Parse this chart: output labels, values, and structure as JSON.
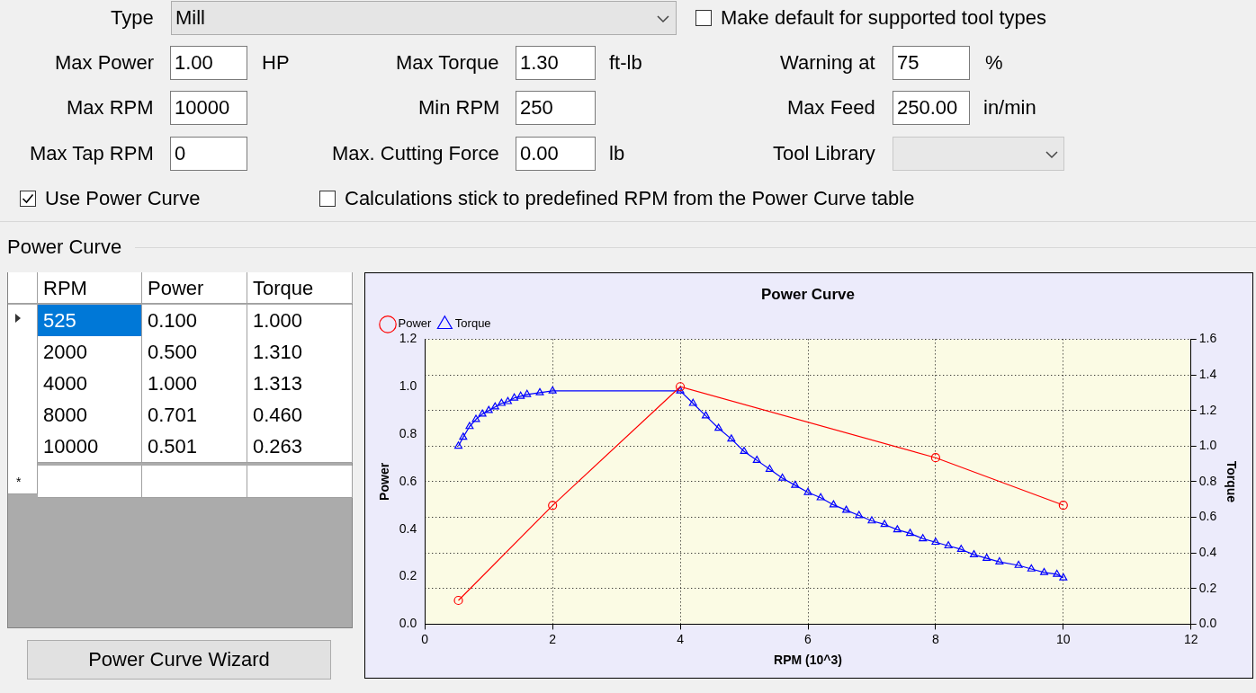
{
  "chart_data": {
    "type": "line",
    "title": "Power Curve",
    "xlabel": "RPM (10^3)",
    "ylabel": "Power",
    "y2label": "Torque",
    "xlim": [
      0,
      12
    ],
    "xticks": [
      0,
      2,
      4,
      6,
      8,
      10,
      12
    ],
    "ylim": [
      0,
      1.2
    ],
    "yticks": [
      {
        "value": 0,
        "label": "0.0"
      },
      0.2,
      0.4,
      0.6,
      0.8,
      {
        "value": 1,
        "label": "1.0"
      },
      1.2
    ],
    "y2lim": [
      0,
      1.6
    ],
    "y2ticks": [
      {
        "value": 0,
        "label": "0.0"
      },
      0.2,
      0.4,
      0.6,
      0.8,
      {
        "value": 1,
        "label": "1.0"
      },
      1.2,
      1.4,
      1.6
    ],
    "grid": true,
    "legend": "top left",
    "line_style": "solid",
    "series": [
      {
        "name": "Power",
        "color": "#ff0000",
        "marker": "circle",
        "x": [
          0.525,
          2,
          4,
          8,
          10
        ],
        "values": [
          0.1,
          0.5,
          1.0,
          0.701,
          0.501
        ]
      },
      {
        "name": "Torque",
        "color": "#0000ff",
        "marker": "triangle",
        "axis": "y2",
        "x": [
          0.525,
          0.6,
          0.7,
          0.8,
          0.9,
          1.0,
          1.1,
          1.2,
          1.3,
          1.4,
          1.5,
          1.6,
          1.8,
          2,
          4,
          4.2,
          4.4,
          4.6,
          4.8,
          5,
          5.2,
          5.4,
          5.6,
          5.8,
          6,
          6.2,
          6.4,
          6.6,
          6.8,
          7,
          7.2,
          7.4,
          7.6,
          7.8,
          8,
          8.2,
          8.4,
          8.6,
          8.8,
          9,
          9.3,
          9.5,
          9.7,
          9.9,
          10
        ],
        "values": [
          1.0,
          1.05,
          1.11,
          1.15,
          1.18,
          1.2,
          1.22,
          1.24,
          1.25,
          1.27,
          1.28,
          1.29,
          1.3,
          1.31,
          1.31,
          1.24,
          1.17,
          1.1,
          1.04,
          0.97,
          0.92,
          0.87,
          0.82,
          0.78,
          0.74,
          0.71,
          0.67,
          0.64,
          0.61,
          0.58,
          0.56,
          0.53,
          0.51,
          0.48,
          0.46,
          0.44,
          0.42,
          0.39,
          0.37,
          0.35,
          0.33,
          0.31,
          0.29,
          0.28,
          0.26
        ]
      }
    ],
    "annotations": [
      "Type",
      "Mill",
      "Make default for supported tool types",
      "Max Power",
      "1.00",
      "HP",
      "Max Torque",
      "1.30",
      "ft-lb",
      "Warning at",
      "75",
      "%",
      "Max RPM",
      "10000",
      "Min RPM",
      "250",
      "Max Feed",
      "250.00",
      "in/min",
      "Max Tap RPM",
      "0",
      "Max. Cutting Force",
      "0.00",
      "lb",
      "Tool Library",
      "Use Power Curve",
      "Calculations stick to predefined RPM from the Power Curve table",
      "Power Curve",
      "RPM",
      "Power",
      "Torque",
      "525",
      "0.100",
      "1.000",
      "2000",
      "0.500",
      "1.310",
      "4000",
      "1.000",
      "1.313",
      "8000",
      "0.701",
      "0.460",
      "10000",
      "0.501",
      "0.263",
      "*",
      "Power Curve Wizard"
    ]
  }
}
